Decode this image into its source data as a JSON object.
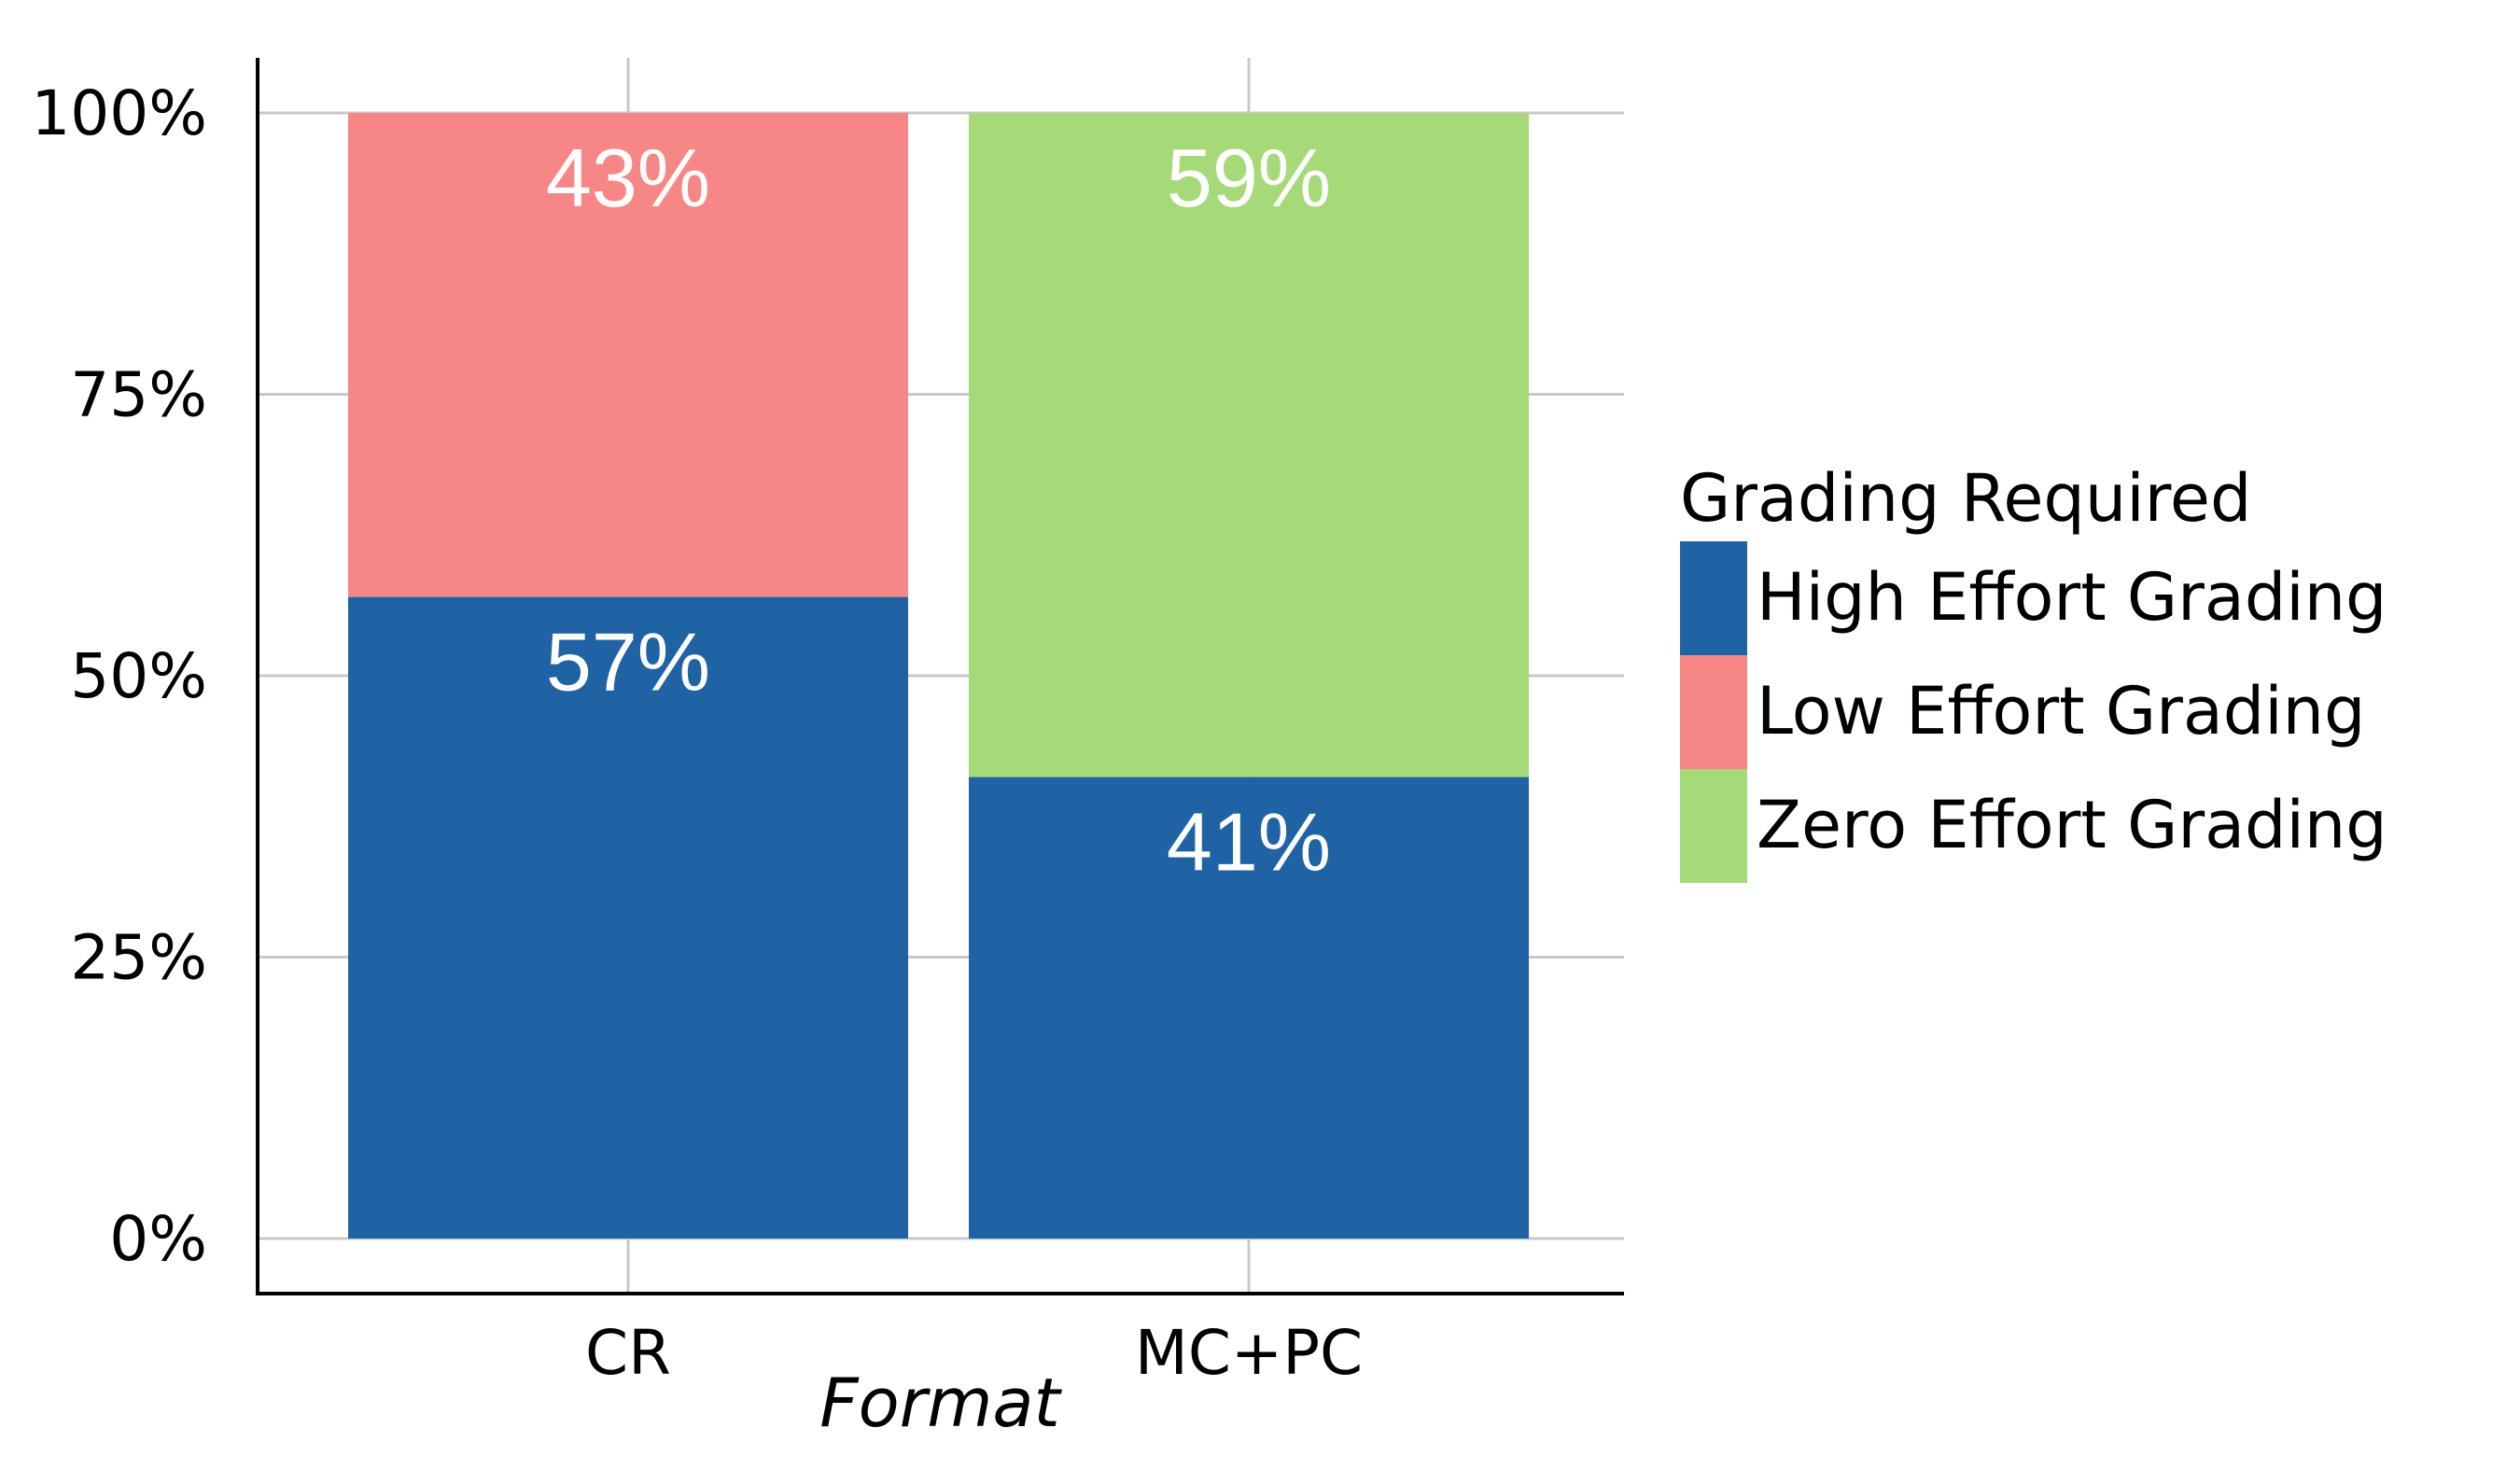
{
  "chart_data": {
    "type": "bar",
    "stacked": true,
    "categories": [
      "CR",
      "MC+PC"
    ],
    "xlabel": "Format",
    "ylabel": "",
    "ylim": [
      0,
      100
    ],
    "yticks": [
      0,
      25,
      50,
      75,
      100
    ],
    "ytick_labels": [
      "0%",
      "25%",
      "50%",
      "75%",
      "100%"
    ],
    "grid": true,
    "legend": {
      "title": "Grading Required",
      "position": "right"
    },
    "series": [
      {
        "name": "High Effort Grading",
        "color": "#1f63a5",
        "values": [
          57,
          41
        ],
        "labels": [
          "57%",
          "41%"
        ]
      },
      {
        "name": "Low Effort Grading",
        "color": "#f78787",
        "values": [
          43,
          0
        ],
        "labels": [
          "43%",
          ""
        ]
      },
      {
        "name": "Zero Effort Grading",
        "color": "#a6da78",
        "values": [
          0,
          59
        ],
        "labels": [
          "",
          "59%"
        ]
      }
    ]
  }
}
